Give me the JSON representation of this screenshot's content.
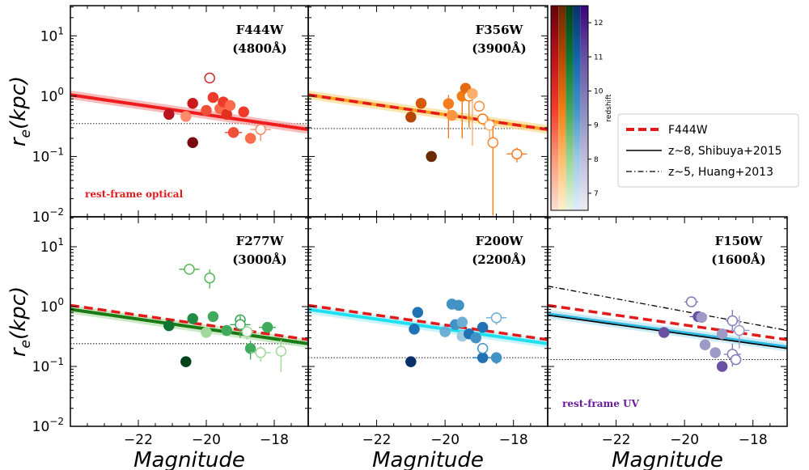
{
  "chart_data": {
    "type": "scatter",
    "xlabel": "Magnitude",
    "ylabel_base": "r",
    "ylabel_sub": "e",
    "ylabel_rest": "(kpc)",
    "xlim": [
      -24,
      -17
    ],
    "ylim_log10": [
      -2,
      1.5
    ],
    "x_ticks": [
      {
        "value": -22,
        "label": "−22"
      },
      {
        "value": -20,
        "label": "−20"
      },
      {
        "value": -18,
        "label": "−18"
      }
    ],
    "y_ticks": [
      {
        "exp": -2,
        "base": "10",
        "sup": "−2"
      },
      {
        "exp": -1,
        "base": "10",
        "sup": "−1"
      },
      {
        "exp": 0,
        "base": "10",
        "sup": "0"
      },
      {
        "exp": 1,
        "base": "10",
        "sup": "1"
      }
    ],
    "colorbar": {
      "label": "redshift",
      "ticks": [
        7,
        8,
        9,
        10,
        11,
        12
      ],
      "range": [
        6.5,
        12.5
      ],
      "strip_colors": [
        [
          "#fbe0d4",
          "#fa9a7a",
          "#ef3b2c",
          "#b8141a",
          "#67000d"
        ],
        [
          "#fff0d0",
          "#fdbe6c",
          "#f07c12",
          "#b54703",
          "#6a2a00"
        ],
        [
          "#e6f5e1",
          "#9ad592",
          "#40a559",
          "#0d7432",
          "#00431a"
        ],
        [
          "#e2edf8",
          "#9fcae1",
          "#4292c6",
          "#1763aa",
          "#08306b"
        ],
        [
          "#ececf5",
          "#bfbddc",
          "#8d88c0",
          "#6a51a3",
          "#3f007d"
        ]
      ]
    },
    "legend": [
      {
        "label": "F444W",
        "style": "dashed",
        "color": "#e31a1c"
      },
      {
        "label": "z~8, Shibuya+2015",
        "style": "solid",
        "color": "#000000"
      },
      {
        "label": "z~5, Huang+2013",
        "style": "dashdot",
        "color": "#000000"
      }
    ],
    "f444w_ref": {
      "p1": [
        -24,
        1.05
      ],
      "p2": [
        -17,
        0.28
      ]
    },
    "panels": [
      {
        "filter": "F444W",
        "wavelength": "(4800Å)",
        "note": "rest-frame optical",
        "note_color": "#e31a1c",
        "fit_color": "#ee1c1c",
        "band_color": "#f4a0a0",
        "fit": [
          -24,
          1.05,
          -17,
          0.28
        ],
        "show_ref": false,
        "shibuya": null,
        "huang": null,
        "limit": 0.35,
        "points": [
          {
            "x": -21.1,
            "y": 0.5,
            "c": "#b81420",
            "open": false
          },
          {
            "x": -20.6,
            "y": 0.46,
            "c": "#fb8a6a",
            "open": false
          },
          {
            "x": -20.4,
            "y": 0.76,
            "c": "#cb181d",
            "open": false
          },
          {
            "x": -20.4,
            "y": 0.17,
            "c": "#7a0a10",
            "open": false
          },
          {
            "x": -19.9,
            "y": 2.0,
            "c": "#d12828",
            "open": true
          },
          {
            "x": -19.8,
            "y": 0.95,
            "c": "#ef3b2c",
            "open": false
          },
          {
            "x": -20.0,
            "y": 0.58,
            "c": "#f0503a",
            "open": false
          },
          {
            "x": -19.6,
            "y": 0.62,
            "c": "#fb6a4a",
            "open": false
          },
          {
            "x": -19.5,
            "y": 0.8,
            "c": "#ef3b2c",
            "open": false
          },
          {
            "x": -19.4,
            "y": 0.5,
            "c": "#e0301e",
            "open": false
          },
          {
            "x": -19.3,
            "y": 0.7,
            "c": "#fb6a4a",
            "open": false
          },
          {
            "x": -19.2,
            "y": 0.25,
            "c": "#f0503a",
            "open": false,
            "xerr": 0.25
          },
          {
            "x": -18.9,
            "y": 0.55,
            "c": "#ef3b2c",
            "open": false
          },
          {
            "x": -18.7,
            "y": 0.2,
            "c": "#fb6a4a",
            "open": false
          },
          {
            "x": -18.4,
            "y": 0.28,
            "c": "#fb8a6a",
            "open": true,
            "xerr": 0.3,
            "yerr_lo": 0.1,
            "yerr_hi": 0.05
          }
        ]
      },
      {
        "filter": "F356W",
        "wavelength": "(3900Å)",
        "note": "",
        "note_color": "#000000",
        "fit_color": "#f7a320",
        "band_color": "#fbd890",
        "fit": [
          -24,
          1.05,
          -17,
          0.28
        ],
        "show_ref": true,
        "shibuya": null,
        "huang": null,
        "limit": 0.29,
        "points": [
          {
            "x": -21.0,
            "y": 0.45,
            "c": "#b54703",
            "open": false
          },
          {
            "x": -20.7,
            "y": 0.76,
            "c": "#d35a08",
            "open": false
          },
          {
            "x": -20.4,
            "y": 0.1,
            "c": "#6a2a00",
            "open": false
          },
          {
            "x": -19.9,
            "y": 0.75,
            "c": "#f57c20",
            "open": false,
            "yerr_lo": 0.55,
            "yerr_hi": 0.3
          },
          {
            "x": -19.8,
            "y": 0.48,
            "c": "#fd9640",
            "open": false
          },
          {
            "x": -19.5,
            "y": 1.0,
            "c": "#f07c12",
            "open": false,
            "yerr_lo": 0.8,
            "yerr_hi": 0.3
          },
          {
            "x": -19.4,
            "y": 1.35,
            "c": "#e56a10",
            "open": false
          },
          {
            "x": -19.3,
            "y": 1.0,
            "c": "#f07c12",
            "open": true,
            "xerr": 0.25,
            "yerr_lo": 0.7,
            "yerr_hi": 0.3
          },
          {
            "x": -19.2,
            "y": 1.1,
            "c": "#fdae6b",
            "open": false,
            "yerr_lo": 0.95,
            "yerr_hi": 0.2
          },
          {
            "x": -19.0,
            "y": 0.68,
            "c": "#fd8d3c",
            "open": true
          },
          {
            "x": -18.9,
            "y": 0.42,
            "c": "#f07c12",
            "open": true
          },
          {
            "x": -18.7,
            "y": 0.33,
            "c": "#fdae6b",
            "open": true,
            "xerr": 0.2,
            "yerr_lo": 0.15,
            "yerr_hi": 0.1
          },
          {
            "x": -18.6,
            "y": 0.17,
            "c": "#f07c12",
            "open": true,
            "yerr_lo": 0.165,
            "yerr_hi": 0.15
          },
          {
            "x": -18.6,
            "y": 0.17,
            "c": "#fd8d3c",
            "open": true
          },
          {
            "x": -17.9,
            "y": 0.11,
            "c": "#fb7a22",
            "open": true,
            "xerr": 0.3,
            "yerr_lo": 0.03,
            "yerr_hi": 0.03
          }
        ]
      },
      {
        "filter": "F277W",
        "wavelength": "(3000Å)",
        "note": "",
        "note_color": "#000000",
        "fit_color": "#1a7a14",
        "band_color": "#b7e0b0",
        "fit": [
          -24,
          0.9,
          -17,
          0.24
        ],
        "show_ref": true,
        "shibuya": null,
        "huang": null,
        "limit": 0.24,
        "points": [
          {
            "x": -20.5,
            "y": 4.2,
            "c": "#5ab55a",
            "open": true,
            "xerr": 0.3
          },
          {
            "x": -19.9,
            "y": 3.0,
            "c": "#5ab55a",
            "open": true,
            "yerr_lo": 1.0,
            "yerr_hi": 1.2
          },
          {
            "x": -21.1,
            "y": 0.48,
            "c": "#0d7432",
            "open": false
          },
          {
            "x": -20.6,
            "y": 0.12,
            "c": "#00431a",
            "open": false
          },
          {
            "x": -20.4,
            "y": 0.63,
            "c": "#238b45",
            "open": false
          },
          {
            "x": -20.0,
            "y": 0.37,
            "c": "#a1d99b",
            "open": false
          },
          {
            "x": -19.8,
            "y": 0.68,
            "c": "#41ab5d",
            "open": false
          },
          {
            "x": -19.4,
            "y": 0.4,
            "c": "#41ab5d",
            "open": false
          },
          {
            "x": -19.0,
            "y": 0.6,
            "c": "#40a559",
            "open": true
          },
          {
            "x": -19.0,
            "y": 0.5,
            "c": "#40a559",
            "open": true,
            "xerr": 0.3,
            "yerr_lo": 0.2,
            "yerr_hi": 0.2
          },
          {
            "x": -18.8,
            "y": 0.38,
            "c": "#a1d99b",
            "open": true,
            "xerr": 0.2,
            "yerr_lo": 0.1,
            "yerr_hi": 0.1
          },
          {
            "x": -18.7,
            "y": 0.2,
            "c": "#41ab5d",
            "open": false,
            "yerr_lo": 0.07,
            "yerr_hi": 0.07
          },
          {
            "x": -18.4,
            "y": 0.17,
            "c": "#a1d99b",
            "open": true,
            "xerr": 0.3,
            "yerr_lo": 0.05,
            "yerr_hi": 0.05
          },
          {
            "x": -18.2,
            "y": 0.45,
            "c": "#41ab5d",
            "open": false,
            "xerr": 0.25
          },
          {
            "x": -17.8,
            "y": 0.18,
            "c": "#a1d99b",
            "open": true,
            "yerr_lo": 0.1,
            "yerr_hi": 0.1
          }
        ]
      },
      {
        "filter": "F200W",
        "wavelength": "(2200Å)",
        "note": "",
        "note_color": "#000000",
        "fit_color": "#20e0f0",
        "band_color": "#b0eef6",
        "fit": [
          -24,
          0.9,
          -17,
          0.24
        ],
        "show_ref": true,
        "shibuya": null,
        "huang": null,
        "limit": 0.14,
        "points": [
          {
            "x": -21.0,
            "y": 0.12,
            "c": "#08306b",
            "open": false
          },
          {
            "x": -20.9,
            "y": 0.42,
            "c": "#2171b5",
            "open": false
          },
          {
            "x": -20.8,
            "y": 0.8,
            "c": "#2171b5",
            "open": false
          },
          {
            "x": -20.0,
            "y": 0.38,
            "c": "#6baed6",
            "open": false
          },
          {
            "x": -19.8,
            "y": 1.1,
            "c": "#4292c6",
            "open": false
          },
          {
            "x": -19.7,
            "y": 0.5,
            "c": "#4292c6",
            "open": false
          },
          {
            "x": -19.6,
            "y": 1.05,
            "c": "#4292c6",
            "open": false
          },
          {
            "x": -19.5,
            "y": 0.55,
            "c": "#6baed6",
            "open": false
          },
          {
            "x": -19.5,
            "y": 0.32,
            "c": "#9ecae1",
            "open": false
          },
          {
            "x": -19.3,
            "y": 0.35,
            "c": "#2171b5",
            "open": false
          },
          {
            "x": -19.1,
            "y": 0.3,
            "c": "#4292c6",
            "open": false
          },
          {
            "x": -18.9,
            "y": 0.14,
            "c": "#2171b5",
            "open": false,
            "xerr": 0.3
          },
          {
            "x": -18.9,
            "y": 0.2,
            "c": "#4292c6",
            "open": true
          },
          {
            "x": -18.5,
            "y": 0.14,
            "c": "#4292c6",
            "open": false,
            "yerr_lo": 0.03,
            "yerr_hi": 0.03
          },
          {
            "x": -18.5,
            "y": 0.65,
            "c": "#6baed6",
            "open": true,
            "xerr": 0.3,
            "yerr_lo": 0.15,
            "yerr_hi": 0.15
          },
          {
            "x": -18.9,
            "y": 0.45,
            "c": "#2171b5",
            "open": false
          }
        ]
      },
      {
        "filter": "F150W",
        "wavelength": "(1600Å)",
        "note": "rest-frame UV",
        "note_color": "#6a1b9a",
        "fit_color": "#30b8e0",
        "band_color": "#b8e4f2",
        "fit": [
          -24,
          0.75,
          -17,
          0.21
        ],
        "show_ref": true,
        "shibuya": [
          -24,
          0.72,
          -17,
          0.2
        ],
        "huang": [
          -24,
          2.2,
          -17,
          0.4
        ],
        "limit": 0.13,
        "points": [
          {
            "x": -20.6,
            "y": 0.37,
            "c": "#6a51a3",
            "open": false
          },
          {
            "x": -19.8,
            "y": 1.2,
            "c": "#807dba",
            "open": true,
            "xerr": 0.2
          },
          {
            "x": -19.6,
            "y": 0.68,
            "c": "#6a51a3",
            "open": false,
            "xerr": 0.25
          },
          {
            "x": -19.5,
            "y": 0.66,
            "c": "#9e9ac8",
            "open": false
          },
          {
            "x": -19.4,
            "y": 0.23,
            "c": "#9e9ac8",
            "open": false
          },
          {
            "x": -19.1,
            "y": 0.17,
            "c": "#9e9ac8",
            "open": false
          },
          {
            "x": -18.9,
            "y": 0.35,
            "c": "#9e9ac8",
            "open": false
          },
          {
            "x": -18.9,
            "y": 0.1,
            "c": "#6a51a3",
            "open": false
          },
          {
            "x": -18.6,
            "y": 0.58,
            "c": "#807dba",
            "open": true,
            "xerr": 0.2,
            "yerr_lo": 0.2,
            "yerr_hi": 0.3
          },
          {
            "x": -18.6,
            "y": 0.16,
            "c": "#807dba",
            "open": true,
            "xerr": 0.25,
            "yerr_lo": 0.06,
            "yerr_hi": 0.08
          },
          {
            "x": -18.4,
            "y": 0.4,
            "c": "#9e9ac8",
            "open": true,
            "xerr": 0.3,
            "yerr_lo": 0.2,
            "yerr_hi": 0.3
          },
          {
            "x": -18.5,
            "y": 0.13,
            "c": "#807dba",
            "open": true
          }
        ]
      }
    ]
  }
}
